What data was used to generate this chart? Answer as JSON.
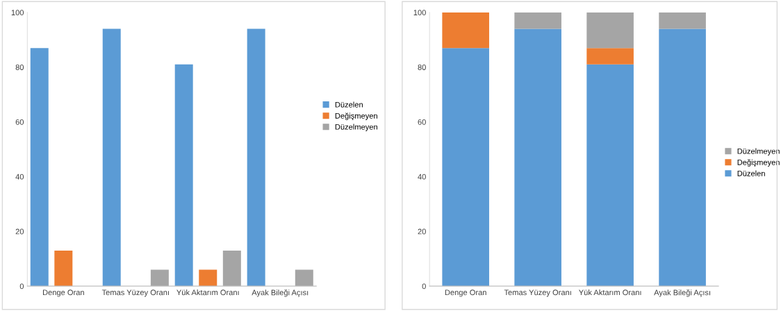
{
  "chart_data": [
    {
      "type": "bar",
      "categories": [
        "Denge Oran",
        "Temas Yüzey Oranı",
        "Yük Aktarım Oranı",
        "Ayak Bileği Açısı"
      ],
      "series": [
        {
          "name": "Düzelen",
          "color": "#5b9bd5",
          "values": [
            87,
            94,
            81,
            94
          ]
        },
        {
          "name": "Değişmeyen",
          "color": "#ed7d31",
          "values": [
            13,
            0,
            6,
            0
          ]
        },
        {
          "name": "Düzelmeyen",
          "color": "#a5a5a5",
          "values": [
            0,
            6,
            13,
            6
          ]
        }
      ],
      "ylim": [
        0,
        100
      ],
      "yticks": [
        0,
        20,
        40,
        60,
        80,
        100
      ],
      "legend": "right"
    },
    {
      "type": "bar",
      "stacked": true,
      "categories": [
        "Denge Oran",
        "Temas Yüzey Oranı",
        "Yük Aktarım Oranı",
        "Ayak Bileği Açısı"
      ],
      "series": [
        {
          "name": "Düzelen",
          "color": "#5b9bd5",
          "values": [
            87,
            94,
            81,
            94
          ]
        },
        {
          "name": "Değişmeyen",
          "color": "#ed7d31",
          "values": [
            13,
            0,
            6,
            0
          ]
        },
        {
          "name": "Düzelmeyen",
          "color": "#a5a5a5",
          "values": [
            0,
            6,
            13,
            6
          ]
        }
      ],
      "ylim": [
        0,
        100
      ],
      "yticks": [
        0,
        20,
        40,
        60,
        80,
        100
      ],
      "legend": "right"
    }
  ]
}
